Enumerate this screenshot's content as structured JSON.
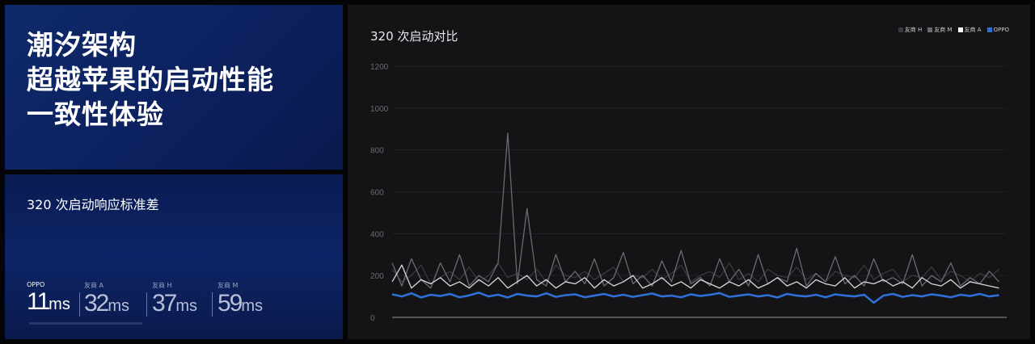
{
  "title_panel": {
    "lines": [
      "潮汐架构",
      "超越苹果的启动性能",
      "一致性体验"
    ]
  },
  "stats_panel": {
    "heading": "320 次启动响应标准差",
    "stats": [
      {
        "label": "OPPO",
        "value": "11",
        "unit": "ms"
      },
      {
        "label": "友商 A",
        "value": "32",
        "unit": "ms"
      },
      {
        "label": "友商 H",
        "value": "37",
        "unit": "ms"
      },
      {
        "label": "友商 M",
        "value": "59",
        "unit": "ms"
      }
    ]
  },
  "chart_data": {
    "type": "line",
    "title": "320 次启动对比",
    "ylim": [
      0,
      1200
    ],
    "yticks": [
      0,
      200,
      400,
      600,
      800,
      1000,
      1200
    ],
    "xlim": [
      1,
      320
    ],
    "grid": true,
    "legend": "top-right",
    "x_step": 5,
    "series": [
      {
        "name": "友商 H",
        "color": "#3a3a3e",
        "values": [
          230,
          170,
          200,
          250,
          160,
          190,
          220,
          180,
          240,
          170,
          200,
          260,
          190,
          210,
          180,
          230,
          170,
          250,
          200,
          190,
          220,
          180,
          210,
          240,
          170,
          200,
          190,
          230,
          180,
          210,
          250,
          170,
          200,
          220,
          190,
          260,
          180,
          210,
          170,
          230,
          200,
          190,
          240,
          180,
          210,
          170,
          220,
          200,
          190,
          250,
          180,
          210,
          230,
          170,
          200,
          190,
          240,
          180,
          220,
          200,
          170,
          210,
          190,
          230
        ]
      },
      {
        "name": "友商 M",
        "color": "#6a6a70",
        "values": [
          260,
          150,
          280,
          180,
          140,
          260,
          170,
          300,
          150,
          200,
          170,
          260,
          880,
          160,
          520,
          180,
          150,
          300,
          170,
          220,
          160,
          280,
          150,
          190,
          310,
          160,
          200,
          150,
          270,
          170,
          320,
          160,
          190,
          150,
          280,
          170,
          230,
          150,
          300,
          160,
          190,
          170,
          330,
          150,
          210,
          170,
          290,
          160,
          200,
          150,
          280,
          170,
          190,
          160,
          300,
          150,
          200,
          170,
          260,
          150,
          190,
          160,
          220,
          170
        ]
      },
      {
        "name": "友商 A",
        "color": "#d8d8dc",
        "values": [
          170,
          250,
          140,
          180,
          160,
          190,
          150,
          170,
          140,
          180,
          150,
          190,
          140,
          170,
          200,
          150,
          180,
          140,
          170,
          160,
          190,
          140,
          180,
          150,
          170,
          200,
          140,
          160,
          190,
          150,
          170,
          140,
          180,
          160,
          140,
          170,
          150,
          180,
          140,
          160,
          190,
          150,
          170,
          140,
          180,
          160,
          150,
          190,
          140,
          170,
          160,
          180,
          150,
          170,
          140,
          190,
          160,
          150,
          180,
          140,
          170,
          160,
          150,
          140
        ]
      },
      {
        "name": "OPPO",
        "color": "#2f6fd6",
        "values": [
          110,
          100,
          115,
          95,
          108,
          102,
          112,
          96,
          105,
          118,
          100,
          108,
          95,
          112,
          104,
          100,
          115,
          98,
          106,
          110,
          96,
          104,
          112,
          100,
          108,
          98,
          106,
          114,
          100,
          104,
          96,
          110,
          102,
          108,
          116,
          98,
          104,
          110,
          100,
          106,
          95,
          112,
          104,
          100,
          108,
          96,
          110,
          104,
          100,
          108,
          70,
          104,
          112,
          98,
          106,
          100,
          110,
          104,
          96,
          108,
          102,
          112,
          100,
          106
        ]
      }
    ]
  }
}
